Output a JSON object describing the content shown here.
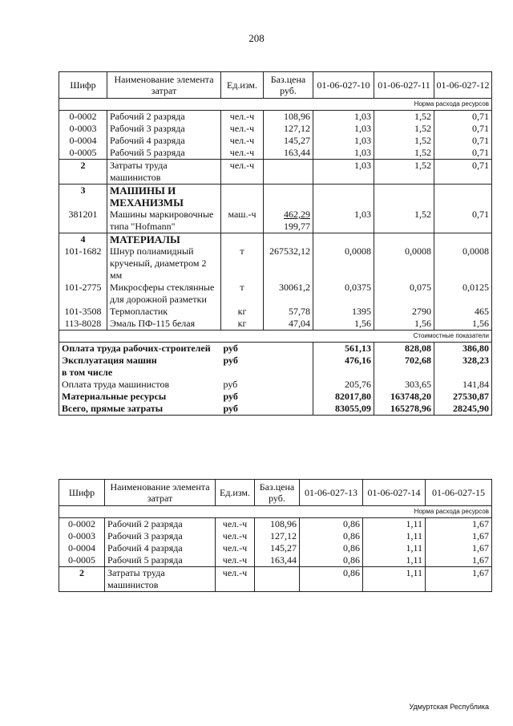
{
  "page_number": "208",
  "footer": "Удмуртская Республика",
  "table1": {
    "headers": [
      "Шифр",
      "Наименование элемента затрат",
      "Ед.изм.",
      "Баз.цена руб.",
      "01-06-027-10",
      "01-06-027-11",
      "01-06-027-12"
    ],
    "norm_label": "Норма расхода ресурсов",
    "rows": [
      {
        "code": "0-0002",
        "name": "Рабочий 2 разряда",
        "unit": "чел.-ч",
        "price": "108,96",
        "v": [
          "1,03",
          "1,52",
          "0,71"
        ],
        "cls": "top"
      },
      {
        "code": "0-0003",
        "name": "Рабочий 3 разряда",
        "unit": "чел.-ч",
        "price": "127,12",
        "v": [
          "1,03",
          "1,52",
          "0,71"
        ]
      },
      {
        "code": "0-0004",
        "name": "Рабочий 4 разряда",
        "unit": "чел.-ч",
        "price": "145,27",
        "v": [
          "1,03",
          "1,52",
          "0,71"
        ]
      },
      {
        "code": "0-0005",
        "name": "Рабочий 5 разряда",
        "unit": "чел.-ч",
        "price": "163,44",
        "v": [
          "1,03",
          "1,52",
          "0,71"
        ],
        "cls": "last"
      },
      {
        "code": "2",
        "name": "Затраты труда машинистов",
        "unit": "чел.-ч",
        "price": "",
        "v": [
          "1,03",
          "1,52",
          "0,71"
        ],
        "cls": "top last",
        "bcode": true
      },
      {
        "code": "3",
        "name": "МАШИНЫ И МЕХАНИЗМЫ",
        "unit": "",
        "price": "",
        "v": [
          "",
          "",
          ""
        ],
        "cls": "top",
        "bcode": true,
        "bname": true
      },
      {
        "code": "381201",
        "name": "Машины маркировочные типа \"Hofmann\"",
        "unit": "маш.-ч",
        "price": "462,29",
        "price2": "199,77",
        "v": [
          "1,03",
          "1,52",
          "0,71"
        ],
        "cls": "last"
      },
      {
        "code": "4",
        "name": "МАТЕРИАЛЫ",
        "unit": "",
        "price": "",
        "v": [
          "",
          "",
          ""
        ],
        "cls": "top",
        "bcode": true,
        "bname": true
      },
      {
        "code": "101-1682",
        "name": "Шнур полиамидный крученый, диаметром 2 мм",
        "unit": "т",
        "price": "267532,12",
        "v": [
          "0,0008",
          "0,0008",
          "0,0008"
        ]
      },
      {
        "code": "101-2775",
        "name": "Микросферы стеклянные для дорожной разметки",
        "unit": "т",
        "price": "30061,2",
        "v": [
          "0,0375",
          "0,075",
          "0,0125"
        ]
      },
      {
        "code": "101-3508",
        "name": "Термопластик",
        "unit": "кг",
        "price": "57,78",
        "v": [
          "1395",
          "2790",
          "465"
        ]
      },
      {
        "code": "113-8028",
        "name": "Эмаль ПФ-115 белая",
        "unit": "кг",
        "price": "47,04",
        "v": [
          "1,56",
          "1,56",
          "1,56"
        ],
        "cls": "last"
      }
    ],
    "cost_label": "Стоимостные показатели",
    "costs": [
      {
        "name": "Оплата труда рабочих-строителей",
        "unit": "руб",
        "v": [
          "561,13",
          "828,08",
          "386,80"
        ],
        "bold": true
      },
      {
        "name": "Эксплуатация машин",
        "unit": "руб",
        "v": [
          "476,16",
          "702,68",
          "328,23"
        ],
        "bold": true
      },
      {
        "name": "в том числе",
        "unit": "",
        "v": [
          "",
          "",
          ""
        ],
        "bold": true
      },
      {
        "name": "Оплата труда машинистов",
        "unit": "руб",
        "v": [
          "205,76",
          "303,65",
          "141,84"
        ]
      },
      {
        "name": "Материальные ресурсы",
        "unit": "руб",
        "v": [
          "82017,80",
          "163748,20",
          "27530,87"
        ],
        "bold": true
      },
      {
        "name": "Всего, прямые затраты",
        "unit": "руб",
        "v": [
          "83055,09",
          "165278,96",
          "28245,90"
        ],
        "bold": true
      }
    ]
  },
  "table2": {
    "headers": [
      "Шифр",
      "Наименование элемента затрат",
      "Ед.изм.",
      "Баз.цена руб.",
      "01-06-027-13",
      "01-06-027-14",
      "01-06-027-15"
    ],
    "norm_label": "Норма расхода ресурсов",
    "rows": [
      {
        "code": "0-0002",
        "name": "Рабочий 2 разряда",
        "unit": "чел.-ч",
        "price": "108,96",
        "v": [
          "0,86",
          "1,11",
          "1,67"
        ],
        "cls": "top"
      },
      {
        "code": "0-0003",
        "name": "Рабочий 3 разряда",
        "unit": "чел.-ч",
        "price": "127,12",
        "v": [
          "0,86",
          "1,11",
          "1,67"
        ]
      },
      {
        "code": "0-0004",
        "name": "Рабочий 4 разряда",
        "unit": "чел.-ч",
        "price": "145,27",
        "v": [
          "0,86",
          "1,11",
          "1,67"
        ]
      },
      {
        "code": "0-0005",
        "name": "Рабочий 5 разряда",
        "unit": "чел.-ч",
        "price": "163,44",
        "v": [
          "0,86",
          "1,11",
          "1,67"
        ],
        "cls": "last"
      },
      {
        "code": "2",
        "name": "Затраты труда машинистов",
        "unit": "чел.-ч",
        "price": "",
        "v": [
          "0,86",
          "1,11",
          "1,67"
        ],
        "cls": "top last",
        "bcode": true
      }
    ]
  }
}
